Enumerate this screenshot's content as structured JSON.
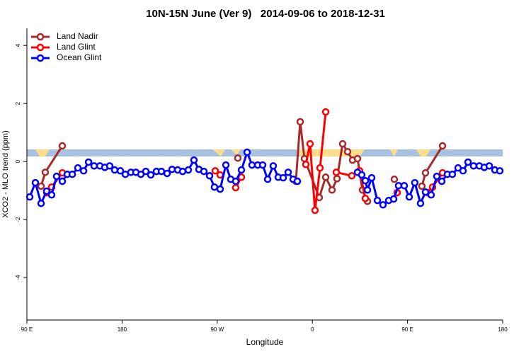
{
  "chart_data": {
    "type": "line",
    "title": "10N-15N June (Ver 9)   2014-09-06 to 2018-12-31",
    "x_label": "Longitude",
    "y_label": "XCO2 - MLO trend (ppm)",
    "xlim": [
      90,
      540
    ],
    "xticks": [
      {
        "value": 90,
        "label": "90 E"
      },
      180,
      {
        "value": 270,
        "label": "90 W"
      },
      {
        "value": 360,
        "label": "0"
      },
      {
        "value": 450,
        "label": "90 E"
      },
      {
        "value": 540,
        "label": "180"
      }
    ],
    "ylim": [
      -5.46,
      4.59
    ],
    "yticks": [
      -4,
      -2,
      0,
      2,
      4
    ],
    "legend": "top-left",
    "series": [
      {
        "name": "Land Nadir",
        "color": "#a52a2a",
        "x": [
          103.4,
          107.4,
          123.5,
          null,
          289.5,
          null,
          344.4,
          348.5,
          352.5,
          366.5,
          372.6,
          378.6,
          383.3,
          388.6,
          393.3,
          398.0,
          402.7,
          407.4,
          412.1,
          null,
          437.5,
          null,
          463.6,
          467.0,
          483.1
        ],
        "values": [
          -0.85,
          -0.37,
          0.54,
          null,
          0.12,
          null,
          -0.68,
          1.37,
          0.1,
          -1.24,
          -0.54,
          -0.98,
          -0.59,
          0.61,
          0.34,
          0.05,
          0.1,
          -0.98,
          -1.37,
          null,
          -0.61,
          null,
          -0.85,
          -0.39,
          0.54
        ]
      },
      {
        "name": "Land Glint",
        "color": "#ff0000",
        "x": [
          108.7,
          113.4,
          123.5,
          null,
          268.1,
          272.8,
          null,
          287.5,
          292.9,
          null,
          353.8,
          357.8,
          362.5,
          367.2,
          372.6,
          null,
          382.6,
          397.3,
          404.7,
          410.1,
          null,
          440.2,
          null,
          469.0,
          473.7,
          483.1
        ],
        "values": [
          -1.07,
          -0.88,
          -0.39,
          null,
          -0.32,
          -0.46,
          null,
          -0.9,
          -0.54,
          null,
          -0.1,
          0.61,
          -1.68,
          -0.22,
          1.71,
          null,
          -0.37,
          -0.49,
          -0.32,
          -1.27,
          null,
          -1.07,
          null,
          -1.07,
          -0.88,
          -0.39
        ]
      },
      {
        "name": "Ocean Glint",
        "color": "#0000ff",
        "x": [
          92.7,
          98.0,
          103.4,
          108.7,
          113.4,
          118.1,
          123.5,
          128.2,
          132.9,
          138.2,
          143.6,
          148.3,
          153.6,
          159.0,
          163.7,
          168.3,
          173.0,
          178.4,
          183.1,
          188.4,
          193.1,
          197.8,
          202.5,
          207.2,
          212.5,
          217.2,
          222.6,
          227.3,
          232.6,
          237.3,
          242.7,
          248.0,
          252.7,
          257.4,
          262.8,
          267.4,
          272.8,
          278.2,
          282.8,
          287.5,
          292.9,
          298.3,
          302.9,
          308.3,
          313.0,
          317.7,
          323.0,
          327.7,
          332.4,
          337.1,
          341.8,
          345.8,
          null,
          402.7,
          406.7,
          410.1,
          412.1,
          416.1,
          421.5,
          426.8,
          432.2,
          436.9,
          441.5,
          446.9,
          451.6,
          456.9,
          462.3,
          467.0,
          472.3,
          477.7,
          482.4,
          487.7,
          492.4,
          497.8,
          502.5,
          507.2,
          512.5,
          517.9,
          522.6,
          527.3,
          532.6,
          537.3
        ],
        "values": [
          -1.22,
          -0.73,
          -1.44,
          -1.02,
          -1.15,
          -0.51,
          -0.68,
          -0.44,
          -0.44,
          -0.22,
          -0.32,
          -0.02,
          -0.15,
          -0.15,
          -0.2,
          -0.15,
          -0.29,
          -0.32,
          -0.44,
          -0.37,
          -0.37,
          -0.44,
          -0.34,
          -0.46,
          -0.34,
          -0.34,
          -0.41,
          -0.27,
          -0.29,
          -0.34,
          -0.29,
          0.05,
          -0.27,
          -0.34,
          -0.49,
          -0.88,
          -0.95,
          -0.12,
          -0.61,
          -0.68,
          -0.29,
          0.32,
          -0.12,
          -0.12,
          -0.12,
          -0.61,
          -0.15,
          -0.54,
          -0.56,
          -0.37,
          -0.61,
          -0.68,
          null,
          -0.37,
          -0.46,
          -0.66,
          -0.98,
          -0.56,
          -1.34,
          -1.49,
          -1.34,
          -1.29,
          -0.83,
          -0.83,
          -1.22,
          -0.73,
          -1.44,
          -1.05,
          -1.15,
          -0.51,
          -0.68,
          -0.44,
          -0.44,
          -0.22,
          -0.32,
          -0.02,
          -0.15,
          -0.15,
          -0.2,
          -0.15,
          -0.29,
          -0.32
        ]
      }
    ]
  }
}
